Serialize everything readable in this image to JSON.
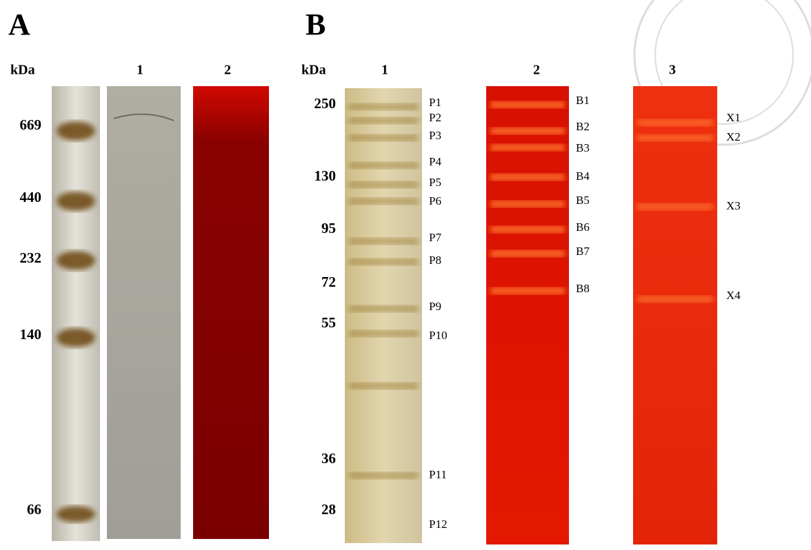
{
  "panels": [
    {
      "label": "A",
      "unit": "kDa",
      "lanes": [
        "1",
        "2"
      ],
      "markers": [
        669,
        440,
        232,
        140,
        66
      ]
    },
    {
      "label": "B",
      "unit": "kDa",
      "lanes": [
        "1",
        "2",
        "3"
      ],
      "markers": [
        250,
        130,
        95,
        72,
        55,
        36,
        28
      ],
      "band_labels": [
        [
          "P1",
          "P2",
          "P3",
          "P4",
          "P5",
          "P6",
          "P7",
          "P8",
          "P9",
          "P10",
          "P11",
          "P12"
        ],
        [
          "B1",
          "B2",
          "B3",
          "B4",
          "B5",
          "B6",
          "B7",
          "B8"
        ],
        [
          "X1",
          "X2",
          "X3",
          "X4"
        ]
      ]
    }
  ]
}
